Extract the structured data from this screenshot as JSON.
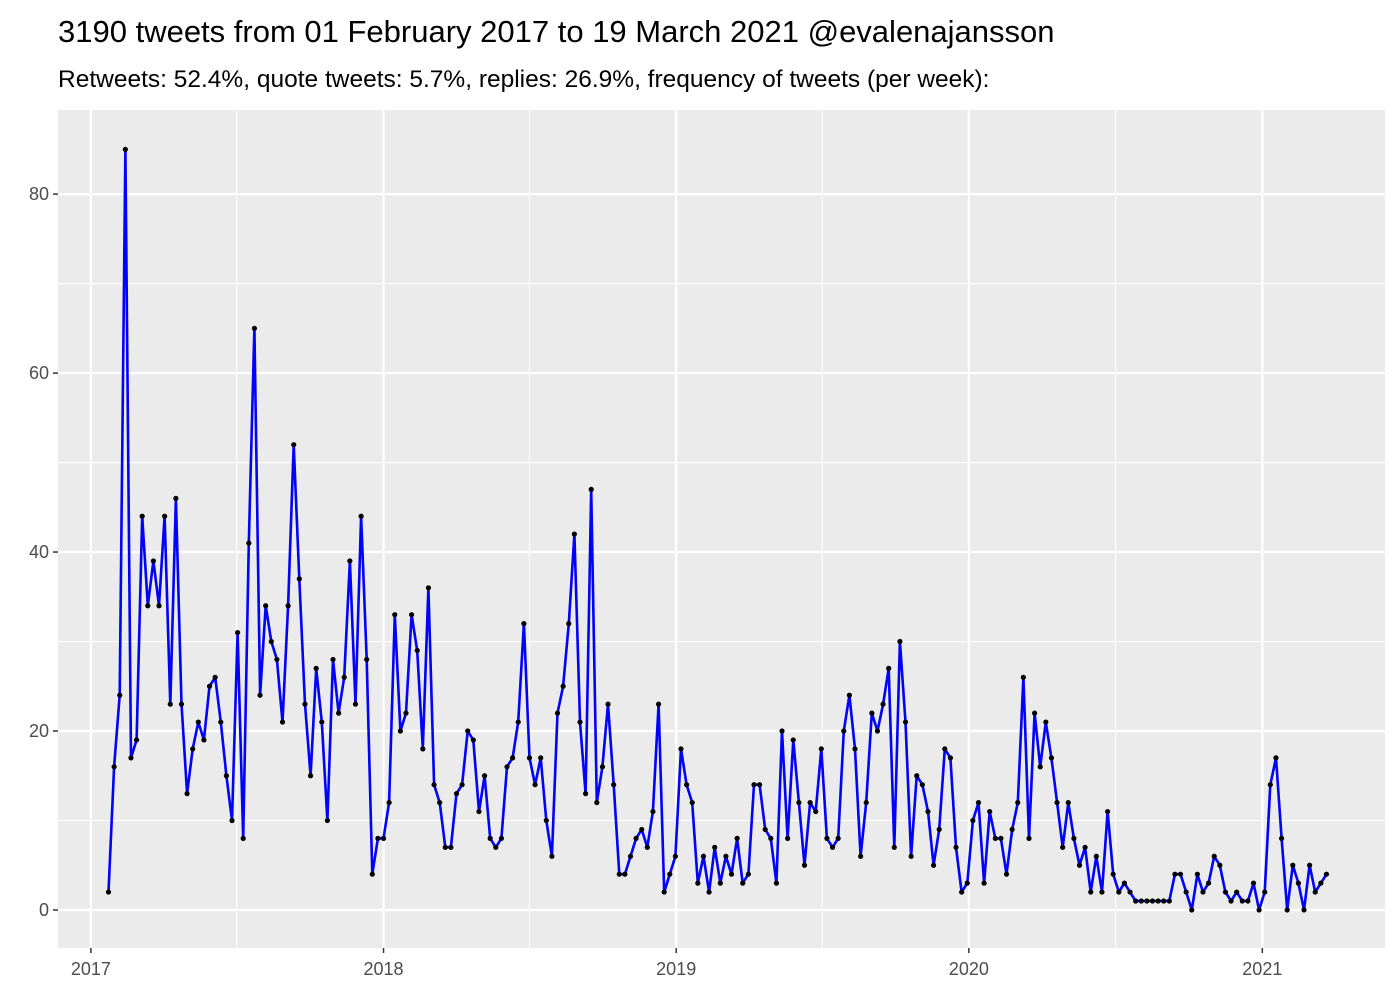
{
  "chart_data": {
    "type": "line",
    "title": "3190 tweets from 01 February 2017 to 19 March 2021 @evalenajansson",
    "subtitle": "Retweets: 52.4%, quote tweets: 5.7%, replies: 26.9%, frequency of tweets (per week):",
    "xlabel": "",
    "ylabel": "",
    "ylim": [
      -4.25,
      89.4
    ],
    "xlim": [
      "2016-11-21",
      "2021-06-03"
    ],
    "y_ticks": [
      0,
      20,
      40,
      60,
      80
    ],
    "x_ticks": [
      "2017",
      "2018",
      "2019",
      "2020",
      "2021"
    ],
    "grid": true,
    "legend": "none",
    "colors": {
      "line": "#0000FF",
      "points": "#000000",
      "panel": "#EBEBEB",
      "grid": "#FFFFFF"
    },
    "x": [
      "2017-01-23",
      "2017-01-30",
      "2017-02-06",
      "2017-02-13",
      "2017-02-20",
      "2017-02-27",
      "2017-03-06",
      "2017-03-13",
      "2017-03-20",
      "2017-03-27",
      "2017-04-03",
      "2017-04-10",
      "2017-04-17",
      "2017-04-24",
      "2017-05-01",
      "2017-05-08",
      "2017-05-15",
      "2017-05-22",
      "2017-05-29",
      "2017-06-05",
      "2017-06-12",
      "2017-06-19",
      "2017-06-26",
      "2017-07-03",
      "2017-07-10",
      "2017-07-17",
      "2017-07-24",
      "2017-07-31",
      "2017-08-07",
      "2017-08-14",
      "2017-08-21",
      "2017-08-28",
      "2017-09-04",
      "2017-09-11",
      "2017-09-18",
      "2017-09-25",
      "2017-10-02",
      "2017-10-09",
      "2017-10-16",
      "2017-10-23",
      "2017-10-30",
      "2017-11-06",
      "2017-11-13",
      "2017-11-20",
      "2017-11-27",
      "2017-12-04",
      "2017-12-11",
      "2017-12-18",
      "2017-12-25",
      "2018-01-01",
      "2018-01-08",
      "2018-01-15",
      "2018-01-22",
      "2018-01-29",
      "2018-02-05",
      "2018-02-12",
      "2018-02-19",
      "2018-02-26",
      "2018-03-05",
      "2018-03-12",
      "2018-03-19",
      "2018-03-26",
      "2018-04-02",
      "2018-04-09",
      "2018-04-16",
      "2018-04-23",
      "2018-04-30",
      "2018-05-07",
      "2018-05-14",
      "2018-05-21",
      "2018-05-28",
      "2018-06-04",
      "2018-06-11",
      "2018-06-18",
      "2018-06-25",
      "2018-07-02",
      "2018-07-09",
      "2018-07-16",
      "2018-07-23",
      "2018-07-30",
      "2018-08-06",
      "2018-08-13",
      "2018-08-20",
      "2018-08-27",
      "2018-09-03",
      "2018-09-10",
      "2018-09-17",
      "2018-09-24",
      "2018-10-01",
      "2018-10-08",
      "2018-10-15",
      "2018-10-22",
      "2018-10-29",
      "2018-11-05",
      "2018-11-12",
      "2018-11-19",
      "2018-11-26",
      "2018-12-03",
      "2018-12-10",
      "2018-12-17",
      "2018-12-24",
      "2018-12-31",
      "2019-01-07",
      "2019-01-14",
      "2019-01-21",
      "2019-01-28",
      "2019-02-04",
      "2019-02-11",
      "2019-02-18",
      "2019-02-25",
      "2019-03-04",
      "2019-03-11",
      "2019-03-18",
      "2019-03-25",
      "2019-04-01",
      "2019-04-08",
      "2019-04-15",
      "2019-04-22",
      "2019-04-29",
      "2019-05-06",
      "2019-05-13",
      "2019-05-20",
      "2019-05-27",
      "2019-06-03",
      "2019-06-10",
      "2019-06-17",
      "2019-06-24",
      "2019-07-01",
      "2019-07-08",
      "2019-07-15",
      "2019-07-22",
      "2019-07-29",
      "2019-08-05",
      "2019-08-12",
      "2019-08-19",
      "2019-08-26",
      "2019-09-02",
      "2019-09-09",
      "2019-09-16",
      "2019-09-23",
      "2019-09-30",
      "2019-10-07",
      "2019-10-14",
      "2019-10-21",
      "2019-10-28",
      "2019-11-04",
      "2019-11-11",
      "2019-11-18",
      "2019-11-25",
      "2019-12-02",
      "2019-12-09",
      "2019-12-16",
      "2019-12-23",
      "2019-12-30",
      "2020-01-06",
      "2020-01-13",
      "2020-01-20",
      "2020-01-27",
      "2020-02-03",
      "2020-02-10",
      "2020-02-17",
      "2020-02-24",
      "2020-03-02",
      "2020-03-09",
      "2020-03-16",
      "2020-03-23",
      "2020-03-30",
      "2020-04-06",
      "2020-04-13",
      "2020-04-20",
      "2020-04-27",
      "2020-05-04",
      "2020-05-11",
      "2020-05-18",
      "2020-05-25",
      "2020-06-01",
      "2020-06-08",
      "2020-06-15",
      "2020-06-22",
      "2020-06-29",
      "2020-07-06",
      "2020-07-13",
      "2020-07-20",
      "2020-07-27",
      "2020-08-03",
      "2020-08-10",
      "2020-08-17",
      "2020-08-24",
      "2020-08-31",
      "2020-09-07",
      "2020-09-14",
      "2020-09-21",
      "2020-09-28",
      "2020-10-05",
      "2020-10-12",
      "2020-10-19",
      "2020-10-26",
      "2020-11-02",
      "2020-11-09",
      "2020-11-16",
      "2020-11-23",
      "2020-11-30",
      "2020-12-07",
      "2020-12-14",
      "2020-12-21",
      "2020-12-28",
      "2021-01-04",
      "2021-01-11",
      "2021-01-18",
      "2021-01-25",
      "2021-02-01",
      "2021-02-08",
      "2021-02-15",
      "2021-02-22",
      "2021-03-01",
      "2021-03-08",
      "2021-03-15",
      "2021-03-22"
    ],
    "values": [
      2,
      16,
      24,
      85,
      17,
      19,
      44,
      34,
      39,
      34,
      44,
      23,
      46,
      23,
      13,
      18,
      21,
      19,
      25,
      26,
      21,
      15,
      10,
      31,
      8,
      41,
      65,
      24,
      34,
      30,
      28,
      21,
      34,
      52,
      37,
      23,
      15,
      27,
      21,
      10,
      28,
      22,
      26,
      39,
      23,
      44,
      28,
      4,
      8,
      8,
      12,
      33,
      20,
      22,
      33,
      29,
      18,
      36,
      14,
      12,
      7,
      7,
      13,
      14,
      20,
      19,
      11,
      15,
      8,
      7,
      8,
      16,
      17,
      21,
      32,
      17,
      14,
      17,
      10,
      6,
      22,
      25,
      32,
      42,
      21,
      13,
      47,
      12,
      16,
      23,
      14,
      4,
      4,
      6,
      8,
      9,
      7,
      11,
      23,
      2,
      4,
      6,
      18,
      14,
      12,
      3,
      6,
      2,
      7,
      3,
      6,
      4,
      8,
      3,
      4,
      14,
      14,
      9,
      8,
      3,
      20,
      8,
      19,
      12,
      5,
      12,
      11,
      18,
      8,
      7,
      8,
      20,
      24,
      18,
      6,
      12,
      22,
      20,
      23,
      27,
      7,
      30,
      21,
      6,
      15,
      14,
      11,
      5,
      9,
      18,
      17,
      7,
      2,
      3,
      10,
      12,
      3,
      11,
      8,
      8,
      4,
      9,
      12,
      26,
      8,
      22,
      16,
      21,
      17,
      12,
      7,
      12,
      8,
      5,
      7,
      2,
      6,
      2,
      11,
      4,
      2,
      3,
      2,
      1,
      1,
      1,
      1,
      1,
      1,
      1,
      4,
      4,
      2,
      0,
      4,
      2,
      3,
      6,
      5,
      2,
      1,
      2,
      1,
      1,
      3,
      0,
      2,
      14,
      17,
      8,
      0,
      5,
      3,
      0,
      5,
      2,
      3,
      4
    ]
  }
}
